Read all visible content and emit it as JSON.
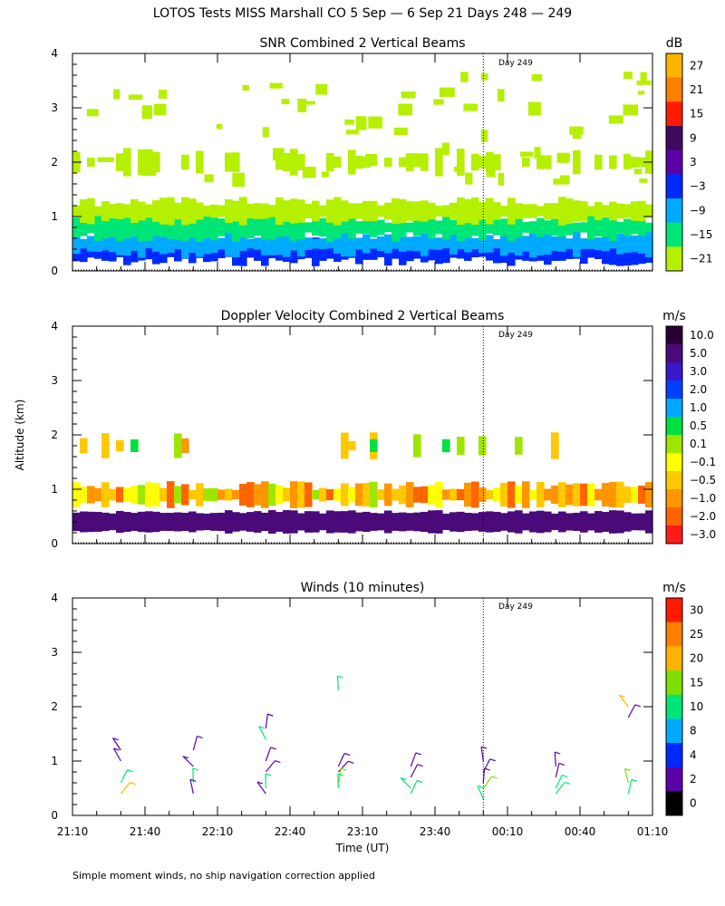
{
  "figure": {
    "title": "LOTOS Tests MISS Marshall CO   5 Sep —  6 Sep 21 Days 248 — 249",
    "ylabel": "Altitude (km)",
    "xlabel": "Time (UT)",
    "footnote": "Simple moment winds, no ship navigation correction applied",
    "day_marker": "Day 249"
  },
  "chart_data": [
    {
      "type": "heatmap",
      "title": "SNR Combined 2 Vertical Beams",
      "ylim": [
        0,
        4
      ],
      "yticks": [
        "0",
        "1",
        "2",
        "3",
        "4"
      ],
      "xticks": [
        "21:10",
        "21:40",
        "22:10",
        "22:40",
        "23:10",
        "23:40",
        "00:10",
        "00:40",
        "01:10"
      ],
      "day_marker_time": "00:00",
      "colorbar": {
        "unit": "dB",
        "labels": [
          "27",
          "21",
          "15",
          "9",
          "3",
          "−3",
          "−9",
          "−15",
          "−21"
        ],
        "colors": [
          "#ffb300",
          "#ff7f00",
          "#ff1a00",
          "#3d0a5e",
          "#5c00a8",
          "#0029ff",
          "#00aaff",
          "#00e676",
          "#b5f000"
        ]
      },
      "layers": [
        {
          "altitude_km": 0.35,
          "level_db": -3
        },
        {
          "altitude_km": 0.5,
          "level_db": -9
        },
        {
          "altitude_km": 0.8,
          "level_db": -15
        },
        {
          "altitude_km": 1.1,
          "level_db": -21
        },
        {
          "altitude_km": 2.0,
          "level_db": -21
        }
      ]
    },
    {
      "type": "heatmap",
      "title": "Doppler Velocity Combined 2 Vertical Beams",
      "ylim": [
        0,
        4
      ],
      "yticks": [
        "0",
        "1",
        "2",
        "3",
        "4"
      ],
      "day_marker_time": "00:00",
      "colorbar": {
        "unit": "m/s",
        "labels": [
          "10.0",
          "5.0",
          "3.0",
          "2.0",
          "1.0",
          "0.5",
          "0.1",
          "−0.1",
          "−0.5",
          "−1.0",
          "−2.0",
          "−3.0"
        ],
        "colors": [
          "#2a0033",
          "#4a0a7a",
          "#3a17c8",
          "#0040ff",
          "#00a8ff",
          "#00e040",
          "#9ee600",
          "#ffff00",
          "#ffc800",
          "#ff9600",
          "#ff6400",
          "#ff1a1a"
        ]
      },
      "layers": [
        {
          "altitude_km": 0.4,
          "level_ms": 5.0
        },
        {
          "altitude_km": 0.9,
          "level_ms": -0.5
        },
        {
          "altitude_km": 1.8,
          "level_ms": 0.1
        }
      ]
    },
    {
      "type": "scatter",
      "title": "Winds (10 minutes)",
      "ylim": [
        0,
        4
      ],
      "yticks": [
        "0",
        "1",
        "2",
        "3",
        "4"
      ],
      "xticks": [
        "21:10",
        "21:40",
        "22:10",
        "22:40",
        "23:10",
        "23:40",
        "00:10",
        "00:40",
        "01:10"
      ],
      "day_marker_time": "00:00",
      "colorbar": {
        "unit": "m/s",
        "labels": [
          "30",
          "25",
          "20",
          "15",
          "10",
          "8",
          "4",
          "2",
          "0"
        ],
        "colors": [
          "#ff1a00",
          "#ff7f00",
          "#ffb300",
          "#7ee000",
          "#00e676",
          "#00aaff",
          "#0029ff",
          "#5c00a8",
          "#000000"
        ]
      },
      "wind_profiles": [
        {
          "time": "21:30",
          "barbs": [
            {
              "alt": 1.2,
              "speed": 3
            },
            {
              "alt": 1.0,
              "speed": 2
            },
            {
              "alt": 0.6,
              "speed": 12
            },
            {
              "alt": 0.4,
              "speed": 22
            }
          ]
        },
        {
          "time": "22:00",
          "barbs": [
            {
              "alt": 1.2,
              "speed": 3
            },
            {
              "alt": 0.9,
              "speed": 3
            },
            {
              "alt": 0.6,
              "speed": 12
            },
            {
              "alt": 0.4,
              "speed": 3
            }
          ]
        },
        {
          "time": "22:30",
          "barbs": [
            {
              "alt": 1.6,
              "speed": 3
            },
            {
              "alt": 1.4,
              "speed": 12
            },
            {
              "alt": 1.0,
              "speed": 2
            },
            {
              "alt": 0.8,
              "speed": 3
            },
            {
              "alt": 0.5,
              "speed": 12
            },
            {
              "alt": 0.4,
              "speed": 3
            }
          ]
        },
        {
          "time": "23:00",
          "barbs": [
            {
              "alt": 2.3,
              "speed": 14
            },
            {
              "alt": 0.9,
              "speed": 3
            },
            {
              "alt": 0.8,
              "speed": 3
            },
            {
              "alt": 0.6,
              "speed": 18
            },
            {
              "alt": 0.5,
              "speed": 12
            }
          ]
        },
        {
          "time": "23:30",
          "barbs": [
            {
              "alt": 0.9,
              "speed": 3
            },
            {
              "alt": 0.7,
              "speed": 3
            },
            {
              "alt": 0.5,
              "speed": 12
            },
            {
              "alt": 0.4,
              "speed": 12
            }
          ]
        },
        {
          "time": "24:00",
          "barbs": [
            {
              "alt": 1.0,
              "speed": 3
            },
            {
              "alt": 0.8,
              "speed": 3
            },
            {
              "alt": 0.6,
              "speed": 3
            },
            {
              "alt": 0.5,
              "speed": 18
            },
            {
              "alt": 0.3,
              "speed": 12
            }
          ]
        },
        {
          "time": "24:30",
          "barbs": [
            {
              "alt": 0.9,
              "speed": 3
            },
            {
              "alt": 0.7,
              "speed": 3
            },
            {
              "alt": 0.5,
              "speed": 12
            },
            {
              "alt": 0.4,
              "speed": 12
            }
          ]
        },
        {
          "time": "25:00",
          "barbs": [
            {
              "alt": 2.0,
              "speed": 22
            },
            {
              "alt": 1.8,
              "speed": 3
            },
            {
              "alt": 0.6,
              "speed": 18
            },
            {
              "alt": 0.4,
              "speed": 12
            }
          ]
        }
      ]
    }
  ]
}
